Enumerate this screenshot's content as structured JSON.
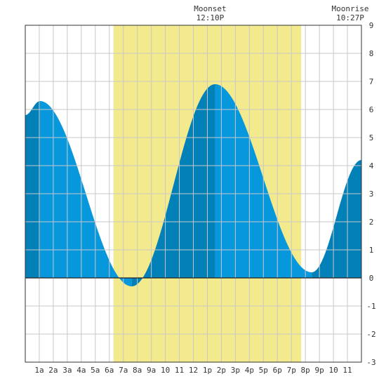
{
  "chart_data": {
    "type": "area",
    "title": "",
    "xlabel": "",
    "ylabel": "",
    "xlim": [
      0,
      24
    ],
    "ylim": [
      -3,
      9
    ],
    "grid": true,
    "x_ticks": [
      {
        "x": 1,
        "label": "1a"
      },
      {
        "x": 2,
        "label": "2a"
      },
      {
        "x": 3,
        "label": "3a"
      },
      {
        "x": 4,
        "label": "4a"
      },
      {
        "x": 5,
        "label": "5a"
      },
      {
        "x": 6,
        "label": "6a"
      },
      {
        "x": 7,
        "label": "7a"
      },
      {
        "x": 8,
        "label": "8a"
      },
      {
        "x": 9,
        "label": "9a"
      },
      {
        "x": 10,
        "label": "10"
      },
      {
        "x": 11,
        "label": "11"
      },
      {
        "x": 12,
        "label": "12"
      },
      {
        "x": 13,
        "label": "1p"
      },
      {
        "x": 14,
        "label": "2p"
      },
      {
        "x": 15,
        "label": "3p"
      },
      {
        "x": 16,
        "label": "4p"
      },
      {
        "x": 17,
        "label": "5p"
      },
      {
        "x": 18,
        "label": "6p"
      },
      {
        "x": 19,
        "label": "7p"
      },
      {
        "x": 20,
        "label": "8p"
      },
      {
        "x": 21,
        "label": "9p"
      },
      {
        "x": 22,
        "label": "10"
      },
      {
        "x": 23,
        "label": "11"
      }
    ],
    "y_ticks": [
      -3,
      -2,
      -1,
      0,
      1,
      2,
      3,
      4,
      5,
      6,
      7,
      8,
      9
    ],
    "daylight": {
      "start": 6.3,
      "end": 19.7
    },
    "extremes": [
      {
        "x": 1.05,
        "y": 6.3,
        "kind": "high"
      },
      {
        "x": 7.6,
        "y": -0.3,
        "kind": "low"
      },
      {
        "x": 13.55,
        "y": 6.9,
        "kind": "high"
      },
      {
        "x": 20.45,
        "y": 0.2,
        "kind": "low"
      }
    ],
    "series": [
      {
        "x": [
          0,
          1.05,
          7.6,
          13.55,
          20.45,
          24
        ],
        "y": [
          5.8,
          6.3,
          -0.3,
          6.9,
          0.2,
          4.2
        ]
      }
    ],
    "annotations": [
      {
        "x": 13.2,
        "title": "Moonset",
        "time": "12:10P"
      },
      {
        "x": 23.2,
        "title": "Moonrise",
        "time": "10:27P"
      }
    ]
  },
  "colors": {
    "background": "#ffffff",
    "daylight": "#f3e98d",
    "grid": "#c8c8c8",
    "frame": "#333333",
    "tide_light": "#0797dd",
    "tide_dark": "#0280b8",
    "text": "#333333"
  }
}
